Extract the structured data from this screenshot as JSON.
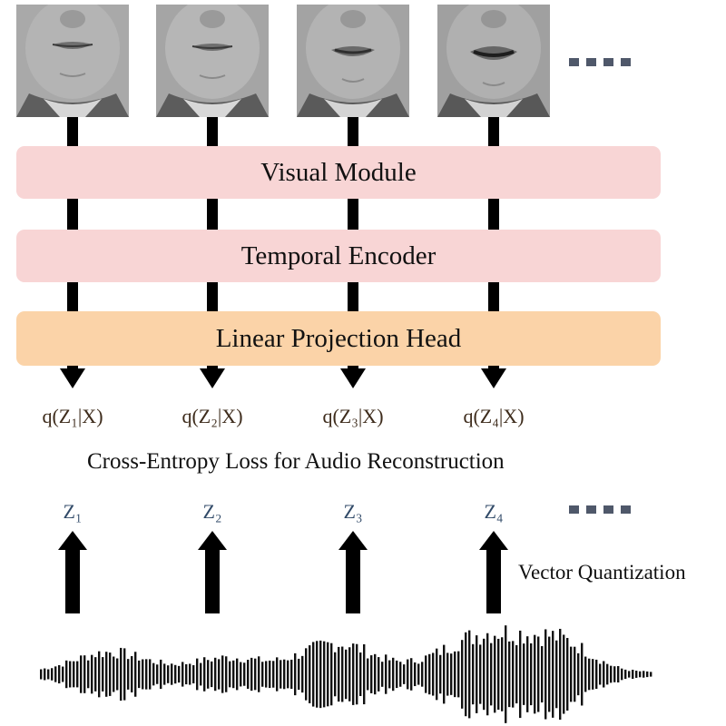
{
  "frames": [
    {
      "name": "lip-frame-1",
      "mouth": "closed"
    },
    {
      "name": "lip-frame-2",
      "mouth": "closed"
    },
    {
      "name": "lip-frame-3",
      "mouth": "slightly-open"
    },
    {
      "name": "lip-frame-4",
      "mouth": "open"
    }
  ],
  "modules": {
    "visual": "Visual Module",
    "temporal": "Temporal Encoder",
    "projection": "Linear Projection Head"
  },
  "outputs": [
    "q(Z₁|X)",
    "q(Z₂|X)",
    "q(Z₃|X)",
    "q(Z₄|X)"
  ],
  "loss_caption": "Cross-Entropy Loss for Audio Reconstruction",
  "tokens": [
    "Z₁",
    "Z₂",
    "Z₃",
    "Z₄"
  ],
  "quantization_caption": "Vector Quantization",
  "colors": {
    "pink_module": "#f8d5d5",
    "orange_module": "#fbd3a8",
    "arrow": "#000000",
    "ellipsis": "#4f586a",
    "q_text": "#3e2c1c",
    "z_text": "#314a68"
  },
  "icons": [
    "lip-frame-image",
    "audio-waveform-icon",
    "ellipsis-icon",
    "arrow-icon"
  ]
}
